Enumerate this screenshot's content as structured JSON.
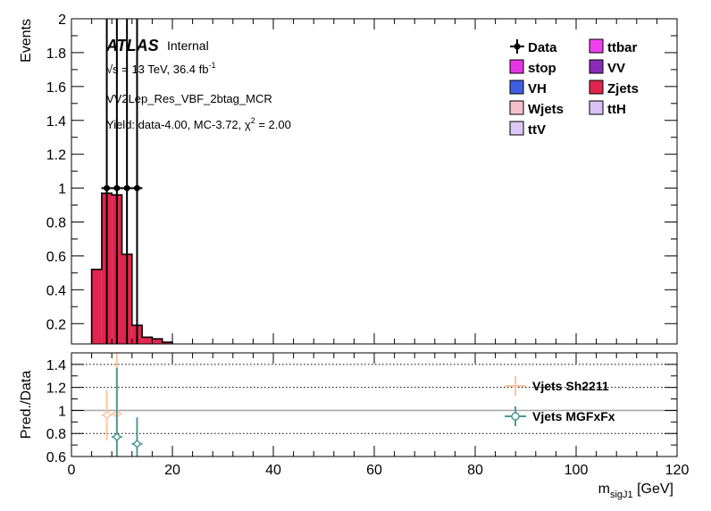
{
  "chart_data": [
    {
      "type": "bar",
      "panel": "main",
      "ylabel": "Events",
      "ylim": [
        0.08,
        2
      ],
      "yticks": [
        "0.2",
        "0.4",
        "0.6",
        "0.8",
        "1",
        "1.2",
        "1.4",
        "1.6",
        "1.8",
        "2"
      ],
      "xlim": [
        0,
        120
      ],
      "bin_edges": [
        4,
        6,
        8,
        10,
        12,
        14,
        16,
        18,
        20
      ],
      "series": [
        {
          "name": "Zjets",
          "values": [
            0.52,
            0.97,
            0.96,
            0.61,
            0.19,
            0.12,
            0.11,
            0.09
          ]
        }
      ],
      "data_points": {
        "name": "Data",
        "x": [
          7,
          9,
          11,
          13
        ],
        "y": [
          1,
          1,
          1,
          1
        ]
      },
      "annotations": {
        "atlas": "ATLAS",
        "internal": "Internal",
        "energy": "√s = 13 TeV, 36.4 fb",
        "energy_sup": "-1",
        "region": "VV2Lep_Res_VBF_2btag_MCR",
        "yield_text": "Yield: data-4.00, MC-3.72, χ",
        "yield_sup": "2",
        "yield_tail": " = 2.00"
      },
      "legend": {
        "placement": "top-right",
        "entries": [
          {
            "name": "Data",
            "style": "marker",
            "color": "#000000"
          },
          {
            "name": "ttbar",
            "style": "fill",
            "color": "#f040f0"
          },
          {
            "name": "stop",
            "style": "fill",
            "color": "#e535e5"
          },
          {
            "name": "VV",
            "style": "fill",
            "color": "#8a2ab8"
          },
          {
            "name": "VH",
            "style": "fill",
            "color": "#3f5fe0"
          },
          {
            "name": "Zjets",
            "style": "fill",
            "color": "#e0254e"
          },
          {
            "name": "Wjets",
            "style": "fill",
            "color": "#f5c0cb"
          },
          {
            "name": "ttH",
            "style": "fill",
            "color": "#d8c2f5"
          },
          {
            "name": "ttV",
            "style": "fill",
            "color": "#dcc8f7"
          }
        ]
      }
    },
    {
      "type": "scatter",
      "panel": "ratio",
      "ylabel": "Pred./Data",
      "xlabel": "m",
      "xlabel_sub": "sigJ1",
      "xlabel_unit": " [GeV]",
      "ylim": [
        0.6,
        1.5
      ],
      "yticks": [
        "0.6",
        "0.8",
        "1",
        "1.2",
        "1.4"
      ],
      "xlim": [
        0,
        120
      ],
      "xticks": [
        "0",
        "20",
        "40",
        "60",
        "80",
        "100",
        "120"
      ],
      "gridlines_y": [
        0.8,
        1.2,
        1.4
      ],
      "reference_line": 1,
      "series": [
        {
          "name": "Vjets Sh2211",
          "color": "#ffc59e",
          "x": [
            7,
            9
          ],
          "y": [
            0.96,
            0.97
          ],
          "yerr": [
            0.22,
            0.55
          ]
        },
        {
          "name": "Vjets MGFxFx",
          "color": "#4d9a98",
          "x": [
            9,
            13
          ],
          "y": [
            0.77,
            0.71
          ],
          "yerr": [
            0.6,
            0.23
          ]
        }
      ],
      "legend": {
        "placement": "right"
      }
    }
  ]
}
